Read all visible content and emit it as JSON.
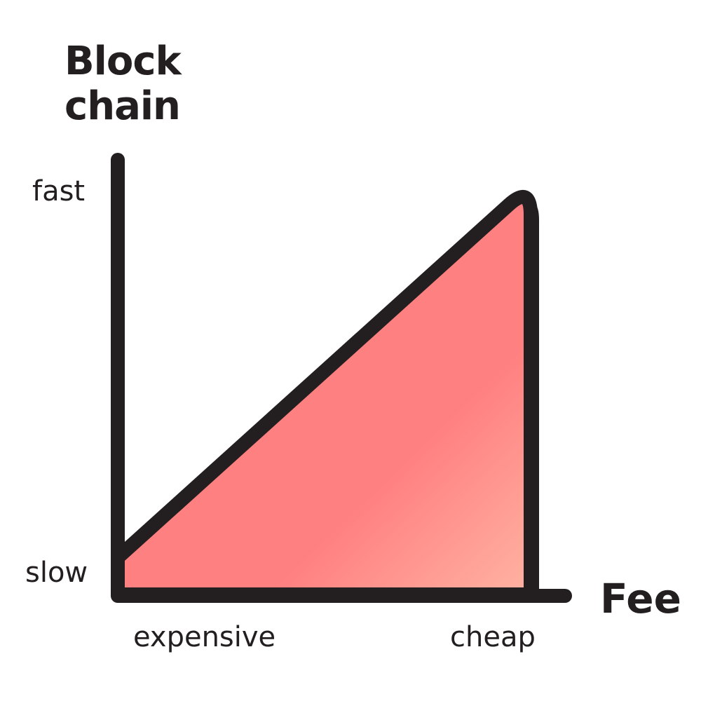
{
  "chart_data": {
    "type": "area",
    "title_lines": [
      "Block",
      "chain"
    ],
    "xlabel": "Fee",
    "ylabel": "",
    "x_ticks": [
      "expensive",
      "cheap"
    ],
    "y_ticks": [
      "slow",
      "fast"
    ],
    "series": [
      {
        "x": [
          0,
          1
        ],
        "y": [
          0.09,
          1
        ]
      }
    ],
    "xlim": [
      0,
      1
    ],
    "ylim": [
      0,
      1
    ],
    "grid": false,
    "colors": {
      "fill_main": "#ff8080",
      "fill_highlight": "#ffb3a3",
      "stroke": "#231f20",
      "text": "#231f20"
    }
  }
}
